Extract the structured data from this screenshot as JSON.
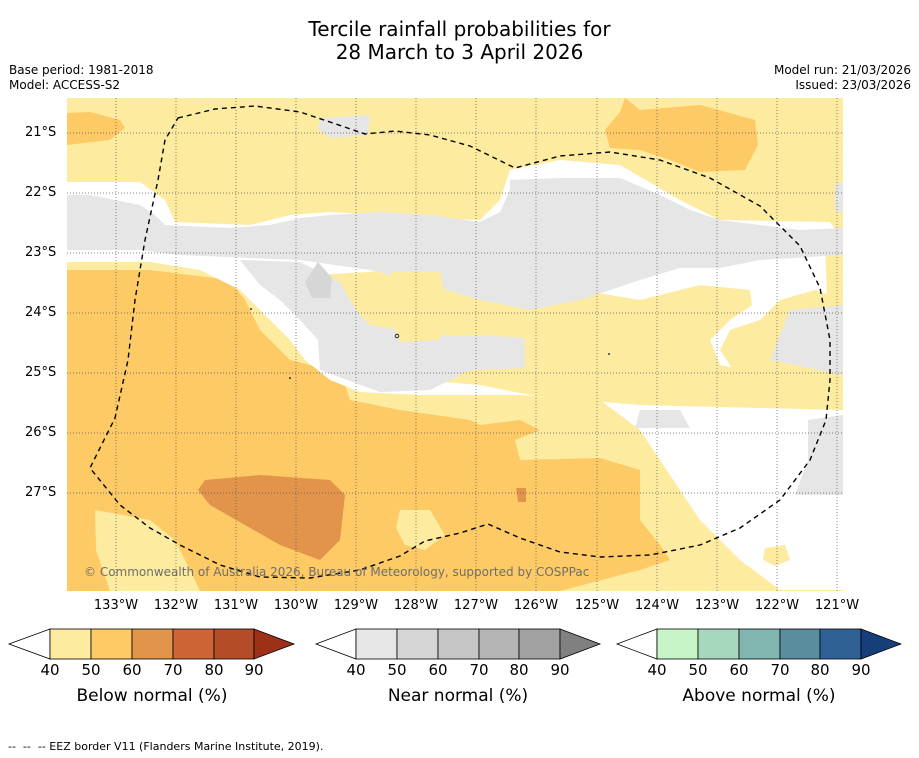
{
  "title_line1": "Tercile rainfall probabilities for",
  "title_line2": "28 March to 3 April 2026",
  "base_period": "Base period: 1981-2018",
  "model": "Model: ACCESS-S2",
  "model_run": "Model run: 21/03/2026",
  "issued": "Issued: 23/03/2026",
  "copyright": "© Commonwealth of Australia 2026, Bureau of Meteorology, supported by COSPPac",
  "footer": "--  --  -- EEZ border V11 (Flanders Marine Institute, 2019).",
  "lat_labels": [
    "21°S",
    "22°S",
    "23°S",
    "24°S",
    "25°S",
    "26°S",
    "27°S"
  ],
  "lon_labels": [
    "133°W",
    "132°W",
    "131°W",
    "130°W",
    "129°W",
    "128°W",
    "127°W",
    "126°W",
    "125°W",
    "124°W",
    "123°W",
    "122°W",
    "121°W"
  ],
  "colorbars": [
    {
      "title": "Below normal (%)",
      "ticks": [
        "40",
        "50",
        "60",
        "70",
        "80",
        "90"
      ],
      "colors": [
        "#fdeba0",
        "#fdca66",
        "#e2944a",
        "#cd6435",
        "#b44c28",
        "#9e3018"
      ]
    },
    {
      "title": "Near normal (%)",
      "ticks": [
        "40",
        "50",
        "60",
        "70",
        "80",
        "90"
      ],
      "colors": [
        "#e6e6e6",
        "#d6d6d6",
        "#c6c6c6",
        "#b4b4b4",
        "#a2a2a2",
        "#808080"
      ]
    },
    {
      "title": "Above normal (%)",
      "ticks": [
        "40",
        "50",
        "60",
        "70",
        "80",
        "90"
      ],
      "colors": [
        "#c8f5c8",
        "#a5d8bd",
        "#80b5b0",
        "#5a8e9e",
        "#2f6195",
        "#163f7a"
      ]
    }
  ],
  "map_colors": {
    "below_40_50": "#fdeba0",
    "below_50_60": "#fdca66",
    "below_60_70": "#e2944a",
    "near_40_50": "#e6e6e6",
    "no_dominant": "#ffffff"
  }
}
